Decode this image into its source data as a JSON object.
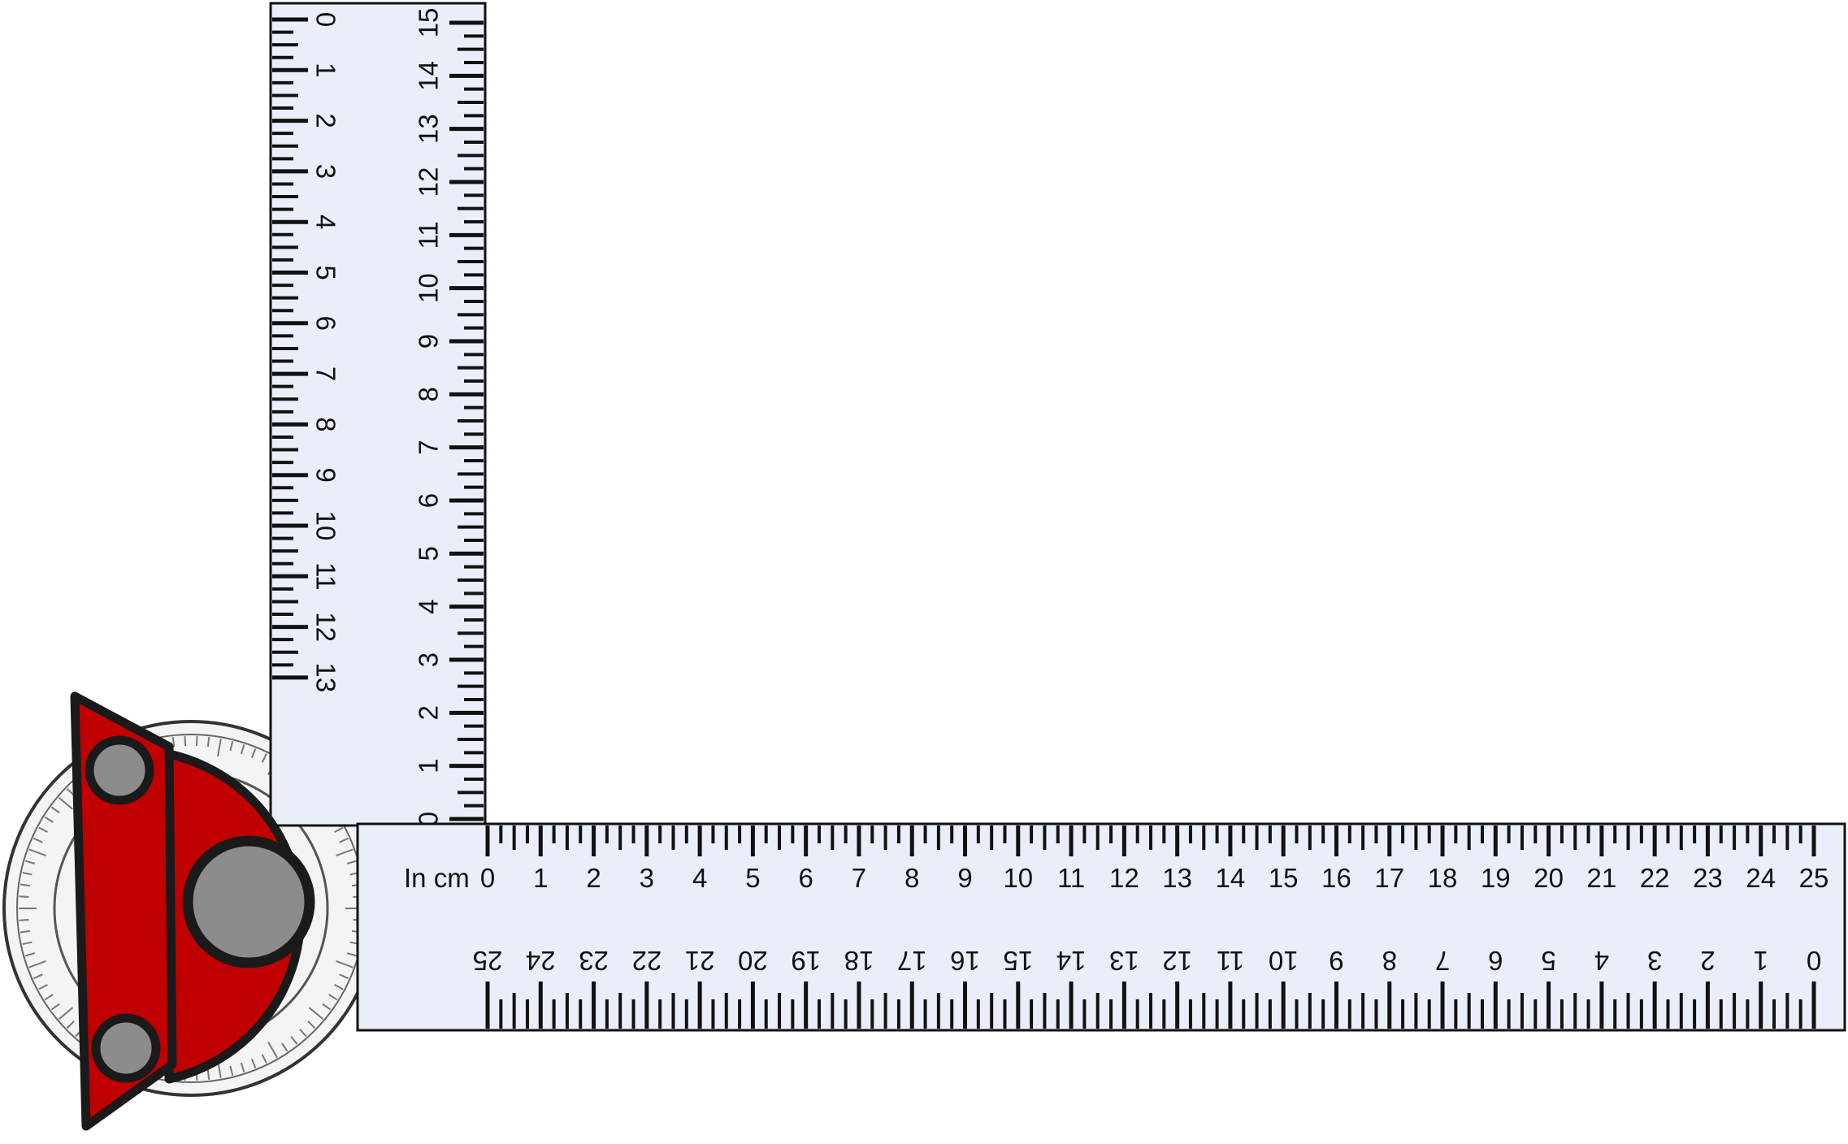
{
  "vertical_ruler": {
    "left_scale": {
      "start": 0,
      "end": 13
    },
    "right_scale": {
      "start": 0,
      "end": 15
    }
  },
  "horizontal_ruler": {
    "unit_label": "In cm",
    "top_scale": {
      "start": 0,
      "end": 25
    },
    "bottom_scale": {
      "start": 25,
      "end": 0
    }
  },
  "colors": {
    "ruler_fill": "#e9eef8",
    "ruler_stroke": "#111111",
    "tick": "#111111",
    "clamp_red": "#c00000",
    "clamp_outline": "#1a1a1a",
    "knob_gray": "#8c8c8c",
    "dial_gray": "#d9d9d9"
  },
  "icons": {
    "clamp": "red-clamp-icon",
    "knob": "gray-knob-icon",
    "dial": "protractor-dial-icon"
  }
}
